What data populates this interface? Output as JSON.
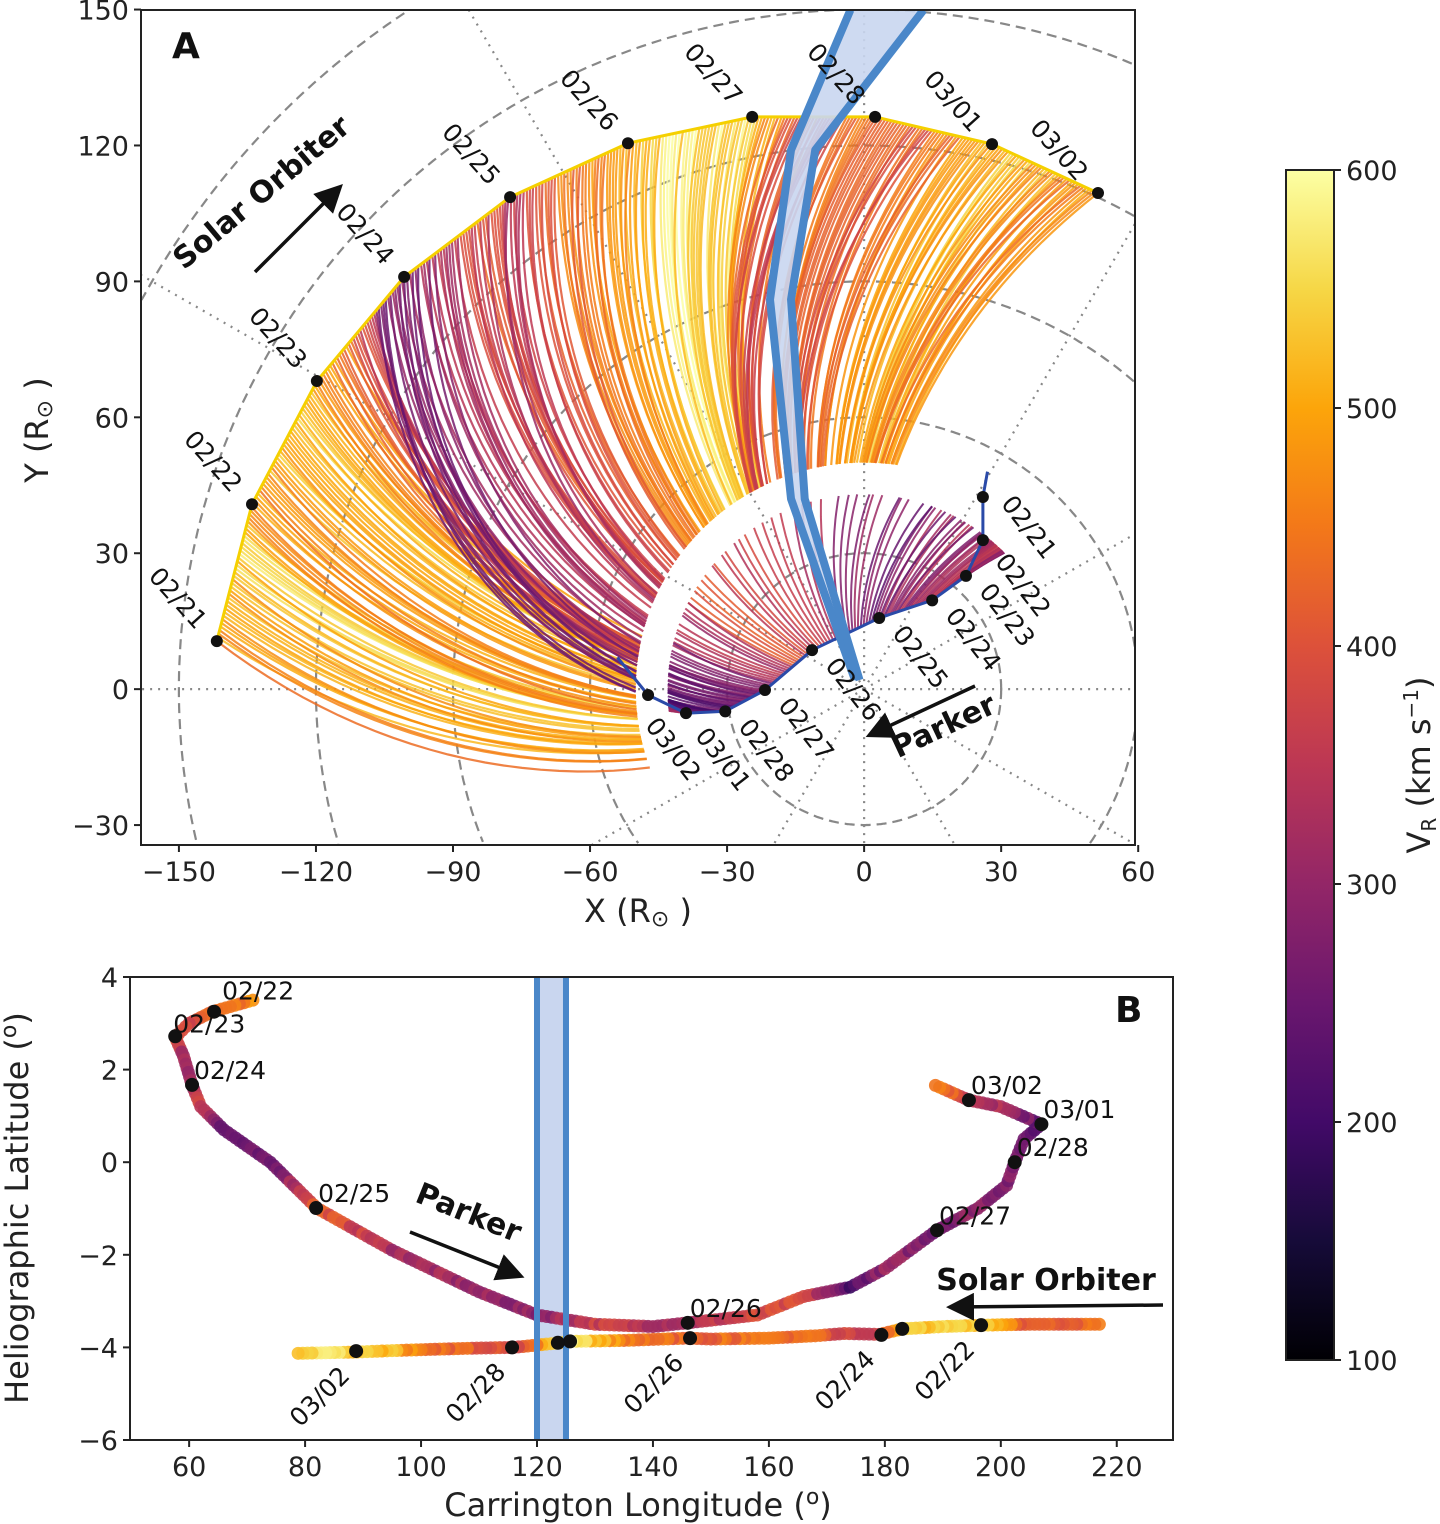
{
  "chart_data": [
    {
      "panel": "A",
      "type": "line",
      "xlabel": "X (R",
      "xlabel_unit": "⊙",
      "ylabel": "Y (R",
      "ylabel_unit": "⊙",
      "xlim": [
        -158.3,
        59.3
      ],
      "ylim": [
        -34.4,
        149.9
      ],
      "xticks": [
        -150,
        -120,
        -90,
        -60,
        -30,
        0,
        30,
        60
      ],
      "yticks": [
        -30,
        0,
        30,
        60,
        90,
        120,
        150
      ],
      "grid": {
        "dashed_circles": [
          30,
          60,
          90,
          120,
          150,
          180
        ],
        "dotted_radials_deg": 30
      },
      "solar_orbiter": {
        "label": "Solar Orbiter",
        "points": [
          {
            "date": "02/21",
            "x": -141.7,
            "y": 10.6
          },
          {
            "date": "02/22",
            "x": -134.0,
            "y": 40.8
          },
          {
            "date": "02/23",
            "x": -119.8,
            "y": 68.0
          },
          {
            "date": "02/24",
            "x": -100.7,
            "y": 91.0
          },
          {
            "date": "02/25",
            "x": -77.5,
            "y": 108.6
          },
          {
            "date": "02/26",
            "x": -51.7,
            "y": 120.5
          },
          {
            "date": "02/27",
            "x": -24.5,
            "y": 126.3
          },
          {
            "date": "02/28",
            "x": 2.4,
            "y": 126.3
          },
          {
            "date": "03/01",
            "x": 28.0,
            "y": 120.3
          },
          {
            "date": "03/02",
            "x": 51.2,
            "y": 109.5
          }
        ],
        "speed_samples_km_s": [
          480,
          500,
          540,
          470,
          500,
          520,
          480,
          450,
          300,
          280,
          320,
          400,
          330,
          420,
          450,
          500,
          560,
          570,
          540,
          420,
          400,
          430,
          390,
          450,
          500,
          520,
          480,
          460
        ],
        "fieldline_inner_radius": 50
      },
      "parker": {
        "label": "Parker",
        "points": [
          {
            "date": "02/21",
            "x": 26.0,
            "y": 42.4
          },
          {
            "date": "02/22",
            "x": 26.0,
            "y": 32.9
          },
          {
            "date": "02/23",
            "x": 22.3,
            "y": 25.0
          },
          {
            "date": "02/24",
            "x": 14.9,
            "y": 19.6
          },
          {
            "date": "02/25",
            "x": 3.3,
            "y": 15.7
          },
          {
            "date": "02/26",
            "x": -11.4,
            "y": 8.6
          },
          {
            "date": "02/27",
            "x": -21.7,
            "y": -0.2
          },
          {
            "date": "02/28",
            "x": -30.4,
            "y": -4.9
          },
          {
            "date": "03/01",
            "x": -39.0,
            "y": -5.3
          },
          {
            "date": "03/02",
            "x": -47.3,
            "y": -1.3
          }
        ],
        "speed_samples_km_s": [
          300,
          320,
          280,
          350,
          330,
          310,
          360,
          300,
          270,
          330,
          400,
          290,
          260,
          250,
          240,
          300,
          280,
          260
        ],
        "fieldline_outer_radius": 43
      },
      "highlight_band": {
        "left_edge": [
          [
            -2,
            2
          ],
          [
            -16,
            42
          ],
          [
            -20.6,
            86
          ],
          [
            -16,
            119
          ],
          [
            -3,
            150
          ]
        ],
        "right_edge": [
          [
            -1,
            2
          ],
          [
            -13,
            42
          ],
          [
            -16,
            86
          ],
          [
            -10.7,
            119
          ],
          [
            13,
            150
          ]
        ]
      }
    },
    {
      "panel": "B",
      "type": "scatter",
      "xlabel": "Carrington Longitude (",
      "ylabel": "Heliographic Latitude (",
      "unit_sup": "o",
      "xlim": [
        49.8,
        229.7
      ],
      "ylim": [
        -6,
        4
      ],
      "xticks": [
        60,
        80,
        100,
        120,
        140,
        160,
        180,
        200,
        220
      ],
      "yticks": [
        -6,
        -4,
        -2,
        0,
        2,
        4
      ],
      "highlight_band_lon": [
        120,
        125
      ],
      "parker": {
        "label": "Parker",
        "track": [
          [
            71,
            3.5,
            470
          ],
          [
            64,
            3.25,
            420
          ],
          [
            60,
            3.0,
            380
          ],
          [
            57.6,
            2.7,
            400
          ],
          [
            59,
            2.3,
            300
          ],
          [
            60.5,
            1.67,
            330
          ],
          [
            62,
            1.2,
            370
          ],
          [
            66,
            0.7,
            250
          ],
          [
            74,
            0,
            240
          ],
          [
            82,
            -0.99,
            420
          ],
          [
            95,
            -1.9,
            330
          ],
          [
            110,
            -2.8,
            300
          ],
          [
            120,
            -3.3,
            290
          ],
          [
            130,
            -3.5,
            370
          ],
          [
            140,
            -3.55,
            340
          ],
          [
            146,
            -3.47,
            330
          ],
          [
            158,
            -3.3,
            380
          ],
          [
            166,
            -2.9,
            380
          ],
          [
            174,
            -2.7,
            220
          ],
          [
            180,
            -2.3,
            300
          ],
          [
            189,
            -1.47,
            270
          ],
          [
            196,
            -1.0,
            300
          ],
          [
            201,
            -0.5,
            280
          ],
          [
            202.4,
            0.0,
            260
          ],
          [
            204,
            0.5,
            270
          ],
          [
            207,
            0.82,
            240
          ],
          [
            200,
            1.2,
            320
          ],
          [
            194.5,
            1.34,
            360
          ],
          [
            188,
            1.7,
            480
          ]
        ],
        "dates": [
          {
            "date": "02/22",
            "lon": 64.3,
            "lat": 3.25
          },
          {
            "date": "02/23",
            "lon": 57.6,
            "lat": 2.72
          },
          {
            "date": "02/24",
            "lon": 60.5,
            "lat": 1.67
          },
          {
            "date": "02/25",
            "lon": 81.9,
            "lat": -0.99
          },
          {
            "date": "02/26",
            "lon": 146.0,
            "lat": -3.47
          },
          {
            "date": "02/27",
            "lon": 189.0,
            "lat": -1.47
          },
          {
            "date": "02/28",
            "lon": 202.4,
            "lat": 0.0
          },
          {
            "date": "03/01",
            "lon": 207.0,
            "lat": 0.82
          },
          {
            "date": "03/02",
            "lon": 194.5,
            "lat": 1.34
          }
        ]
      },
      "solar_orbiter": {
        "label": "Solar Orbiter",
        "track": [
          [
            217,
            -3.5,
            430
          ],
          [
            210,
            -3.5,
            420
          ],
          [
            205,
            -3.5,
            400
          ],
          [
            197,
            -3.52,
            540
          ],
          [
            190,
            -3.55,
            560
          ],
          [
            183,
            -3.6,
            520
          ],
          [
            179,
            -3.72,
            380
          ],
          [
            173,
            -3.7,
            380
          ],
          [
            168,
            -3.75,
            420
          ],
          [
            160,
            -3.8,
            450
          ],
          [
            150,
            -3.82,
            430
          ],
          [
            146,
            -3.8,
            420
          ],
          [
            135,
            -3.85,
            460
          ],
          [
            126,
            -3.87,
            580
          ],
          [
            124,
            -3.9,
            550
          ],
          [
            120,
            -3.95,
            470
          ],
          [
            116,
            -4.0,
            380
          ],
          [
            108,
            -4.02,
            420
          ],
          [
            100,
            -4.05,
            440
          ],
          [
            95,
            -4.07,
            520
          ],
          [
            89,
            -4.1,
            540
          ],
          [
            82,
            -4.12,
            560
          ],
          [
            78,
            -4.13,
            500
          ]
        ],
        "dates": [
          {
            "date": "02/22",
            "lon": 196.6,
            "lat": -3.52
          },
          {
            "date": "",
            "lon": 183.0,
            "lat": -3.6
          },
          {
            "date": "02/24",
            "lon": 179.4,
            "lat": -3.73
          },
          {
            "date": "02/26",
            "lon": 146.4,
            "lat": -3.8
          },
          {
            "date": "",
            "lon": 125.7,
            "lat": -3.87
          },
          {
            "date": "",
            "lon": 123.6,
            "lat": -3.9
          },
          {
            "date": "02/28",
            "lon": 115.7,
            "lat": -4.0
          },
          {
            "date": "03/02",
            "lon": 88.8,
            "lat": -4.08
          }
        ]
      }
    }
  ],
  "colorbar": {
    "label": "V",
    "label_sub": "R",
    "label_unit": " (km s",
    "label_sup": "−1",
    "range": [
      100,
      600
    ],
    "ticks": [
      100,
      200,
      300,
      400,
      500,
      600
    ],
    "colormap": "inferno"
  },
  "panel_labels": {
    "a": "A",
    "b": "B"
  },
  "colors": {
    "band_fill": "#c9d6ef",
    "band_edge": "#4a87c9",
    "parker_path": "#2a4aa8",
    "orbiter_path": "#f5d000",
    "dot": "#111111"
  }
}
